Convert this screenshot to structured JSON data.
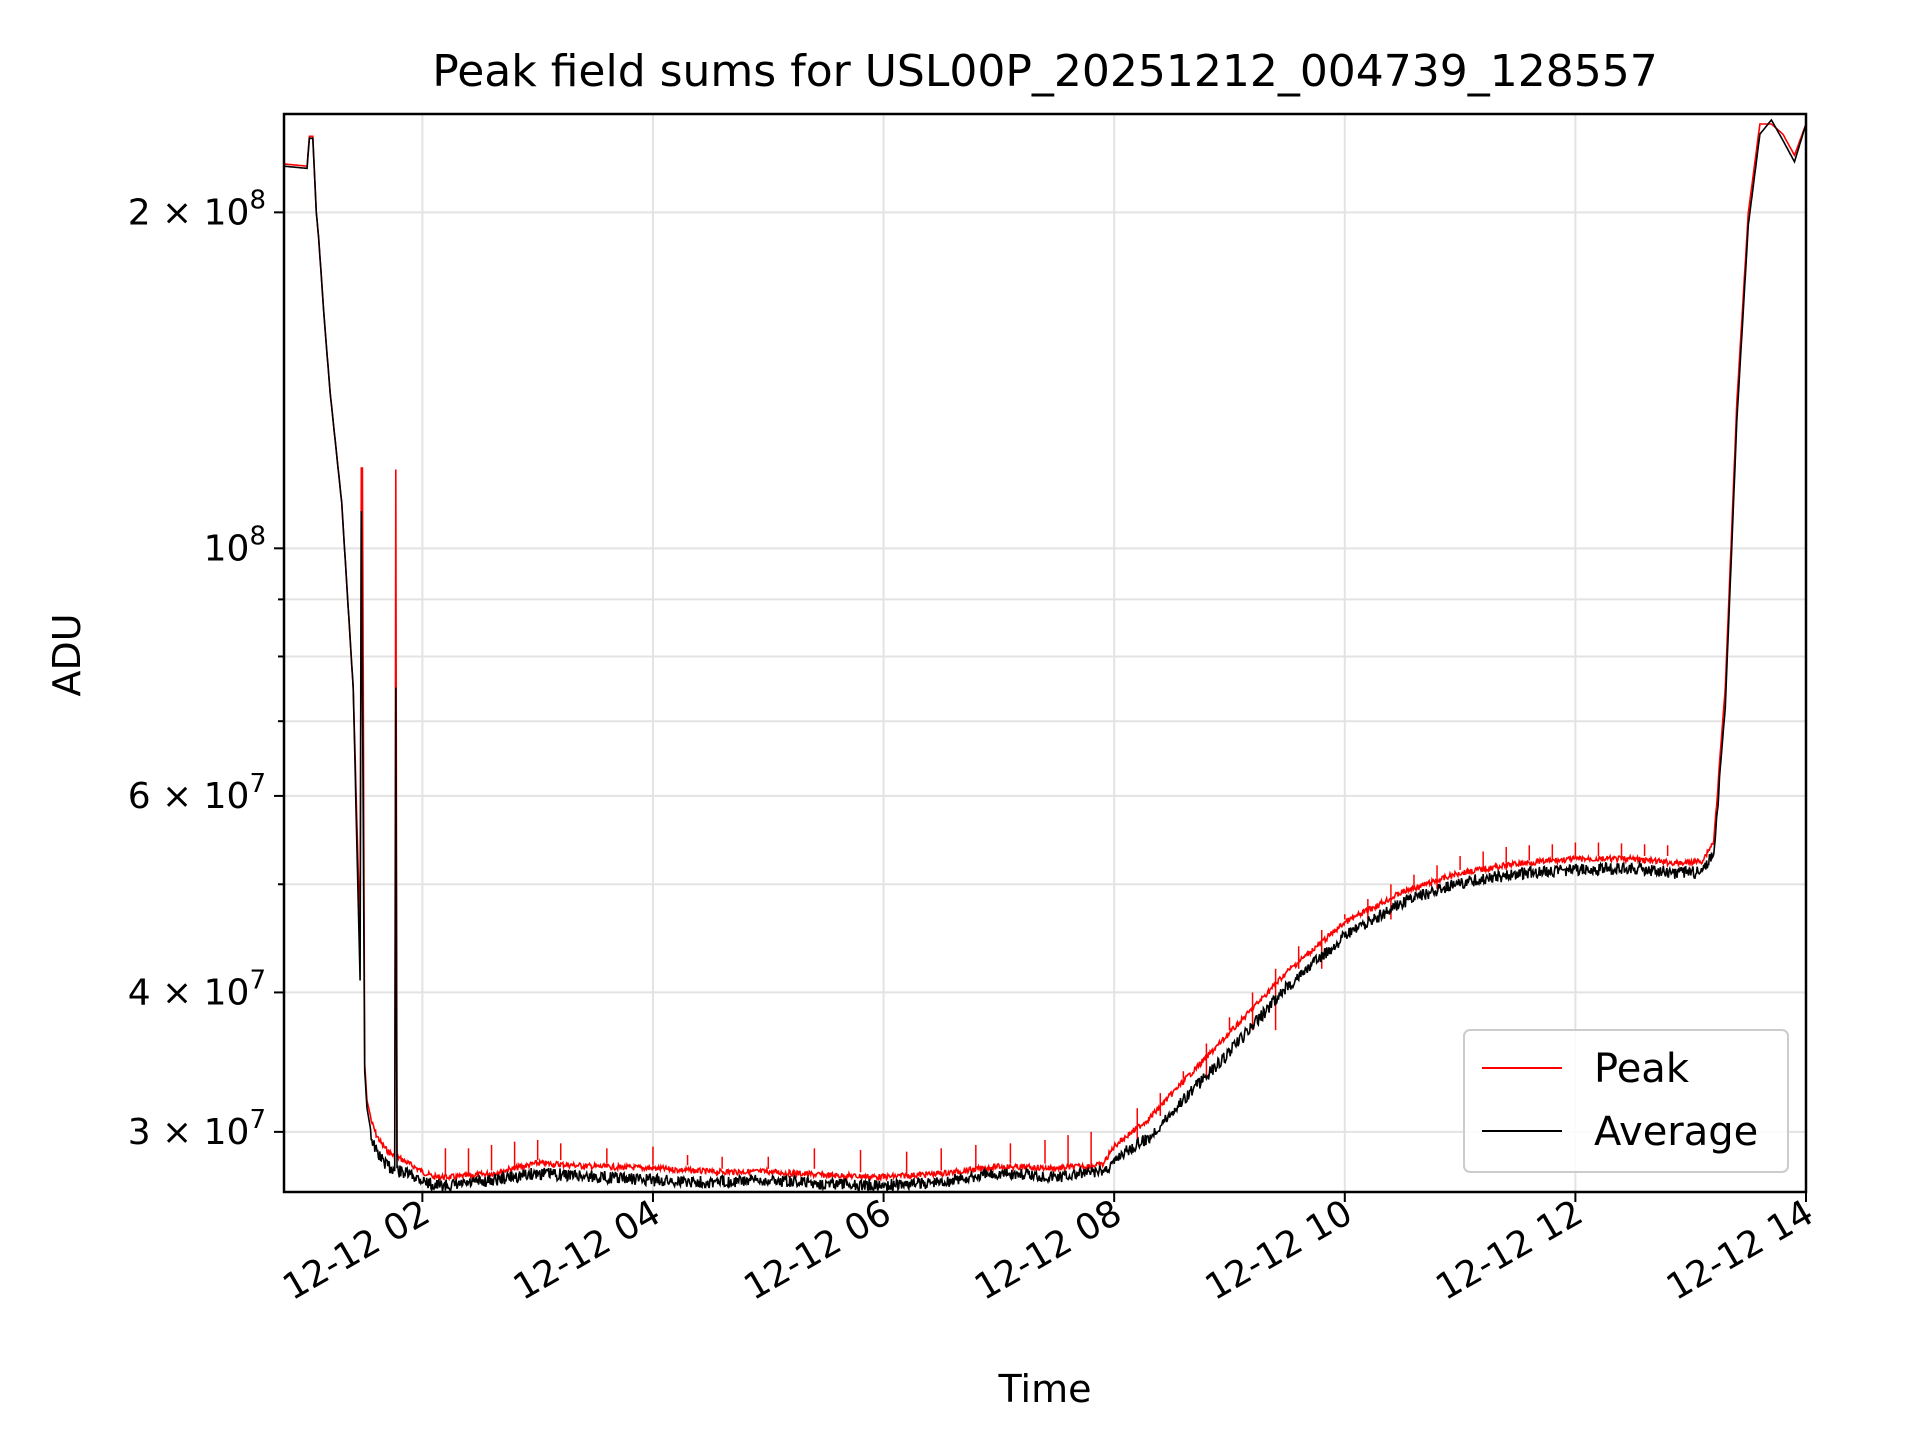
{
  "chart_data": {
    "type": "line",
    "title": "Peak field sums for USL00P_20251212_004739_128557",
    "xlabel": "Time",
    "ylabel": "ADU",
    "yscale": "log",
    "grid": true,
    "xlim": [
      0.8,
      14.0
    ],
    "ylim": [
      26500000,
      245000000
    ],
    "x_ticks": [
      {
        "value": 2,
        "label": "12-12 02"
      },
      {
        "value": 4,
        "label": "12-12 04"
      },
      {
        "value": 6,
        "label": "12-12 06"
      },
      {
        "value": 8,
        "label": "12-12 08"
      },
      {
        "value": 10,
        "label": "12-12 10"
      },
      {
        "value": 12,
        "label": "12-12 12"
      },
      {
        "value": 14,
        "label": "12-12 14"
      }
    ],
    "y_ticks": [
      {
        "value": 30000000,
        "mantissa": "3",
        "exp": "7"
      },
      {
        "value": 40000000,
        "mantissa": "4",
        "exp": "7"
      },
      {
        "value": 60000000,
        "mantissa": "6",
        "exp": "7"
      },
      {
        "value": 100000000,
        "mantissa": "",
        "exp": "8"
      },
      {
        "value": 200000000,
        "mantissa": "2",
        "exp": "8"
      }
    ],
    "y_minor_ticks": [
      50000000,
      70000000,
      80000000,
      90000000
    ],
    "legend": {
      "placement": "lower-right",
      "entries": [
        "Peak",
        "Average"
      ]
    },
    "series": [
      {
        "name": "Peak",
        "color": "#ff0000",
        "x": [
          0.8,
          1.0,
          1.02,
          1.05,
          1.08,
          1.1,
          1.15,
          1.2,
          1.3,
          1.4,
          1.46,
          1.47,
          1.48,
          1.5,
          1.52,
          1.55,
          1.6,
          1.65,
          1.7,
          1.76,
          1.77,
          1.78,
          1.8,
          1.9,
          2.0,
          2.1,
          2.3,
          2.6,
          3.0,
          3.5,
          4.0,
          4.5,
          5.0,
          5.5,
          6.0,
          6.5,
          7.0,
          7.5,
          7.9,
          8.0,
          8.05,
          8.3,
          8.6,
          9.0,
          9.5,
          10.0,
          10.5,
          11.0,
          11.5,
          12.0,
          12.5,
          12.9,
          13.1,
          13.2,
          13.3,
          13.4,
          13.5,
          13.6,
          13.7,
          13.8,
          13.9,
          14.0
        ],
        "y": [
          221000000,
          220000000,
          234000000,
          234000000,
          200000000,
          190000000,
          160000000,
          138000000,
          110000000,
          75000000,
          45000000,
          118000000,
          118000000,
          34500000,
          32000000,
          31000000,
          30000000,
          29400000,
          29000000,
          28700000,
          118000000,
          28700000,
          28600000,
          28200000,
          27800000,
          27500000,
          27500000,
          27700000,
          28300000,
          28100000,
          28000000,
          27800000,
          27800000,
          27600000,
          27500000,
          27700000,
          28100000,
          28000000,
          28200000,
          29300000,
          29600000,
          31000000,
          33500000,
          37000000,
          42000000,
          46500000,
          49500000,
          51500000,
          52500000,
          53000000,
          53000000,
          52500000,
          52800000,
          55000000,
          75000000,
          135000000,
          200000000,
          240000000,
          240000000,
          235000000,
          225000000,
          240000000
        ],
        "spikes_x": [
          2.2,
          2.4,
          2.6,
          2.8,
          3.0,
          3.2,
          3.6,
          4.0,
          4.3,
          4.6,
          5.0,
          5.4,
          5.8,
          6.2,
          6.5,
          6.8,
          7.1,
          7.4,
          7.6,
          7.8,
          8.2,
          8.4,
          8.6,
          8.8,
          9.0,
          9.2,
          9.4,
          9.6,
          9.8,
          10.0,
          10.2,
          10.4,
          10.6,
          10.8,
          11.0,
          11.2,
          11.4,
          11.6,
          11.8,
          12.0,
          12.2,
          12.4,
          12.6,
          12.8
        ],
        "spikes_y": [
          29000000,
          29000000,
          29200000,
          29400000,
          29500000,
          29300000,
          29000000,
          29100000,
          28600000,
          28500000,
          28500000,
          29000000,
          28900000,
          28800000,
          29000000,
          29200000,
          29300000,
          29500000,
          29800000,
          30000000,
          31500000,
          32500000,
          34000000,
          36000000,
          38000000,
          40000000,
          42000000,
          44000000,
          45500000,
          47000000,
          48500000,
          50000000,
          51000000,
          52000000,
          53000000,
          53500000,
          54000000,
          54200000,
          54300000,
          54500000,
          54500000,
          54400000,
          54300000,
          54200000
        ]
      },
      {
        "name": "Average",
        "color": "#000000",
        "x": [
          0.8,
          1.0,
          1.02,
          1.05,
          1.08,
          1.1,
          1.15,
          1.2,
          1.3,
          1.4,
          1.46,
          1.47,
          1.48,
          1.5,
          1.52,
          1.55,
          1.6,
          1.65,
          1.7,
          1.76,
          1.77,
          1.78,
          1.8,
          1.9,
          2.0,
          2.1,
          2.3,
          2.6,
          3.0,
          3.5,
          4.0,
          4.5,
          5.0,
          5.5,
          6.0,
          6.5,
          7.0,
          7.5,
          7.9,
          8.0,
          8.05,
          8.3,
          8.6,
          9.0,
          9.5,
          10.0,
          10.5,
          11.0,
          11.5,
          12.0,
          12.5,
          12.9,
          13.1,
          13.2,
          13.3,
          13.4,
          13.5,
          13.6,
          13.7,
          13.8,
          13.9,
          14.0
        ],
        "y": [
          220000000,
          219000000,
          233000000,
          233000000,
          200000000,
          190000000,
          160000000,
          138000000,
          110000000,
          75000000,
          41000000,
          108000000,
          76000000,
          34000000,
          31500000,
          30200000,
          29200000,
          28700000,
          28300000,
          28100000,
          76000000,
          28100000,
          28000000,
          27800000,
          27500000,
          27200000,
          27200000,
          27500000,
          27900000,
          27700000,
          27500000,
          27400000,
          27500000,
          27300000,
          27200000,
          27400000,
          27900000,
          27700000,
          28000000,
          28500000,
          29000000,
          30000000,
          32500000,
          35800000,
          41000000,
          45500000,
          48800000,
          50800000,
          51800000,
          52200000,
          52300000,
          51800000,
          52000000,
          54000000,
          72000000,
          130000000,
          195000000,
          235000000,
          242000000,
          232000000,
          222000000,
          240000000
        ]
      }
    ]
  }
}
